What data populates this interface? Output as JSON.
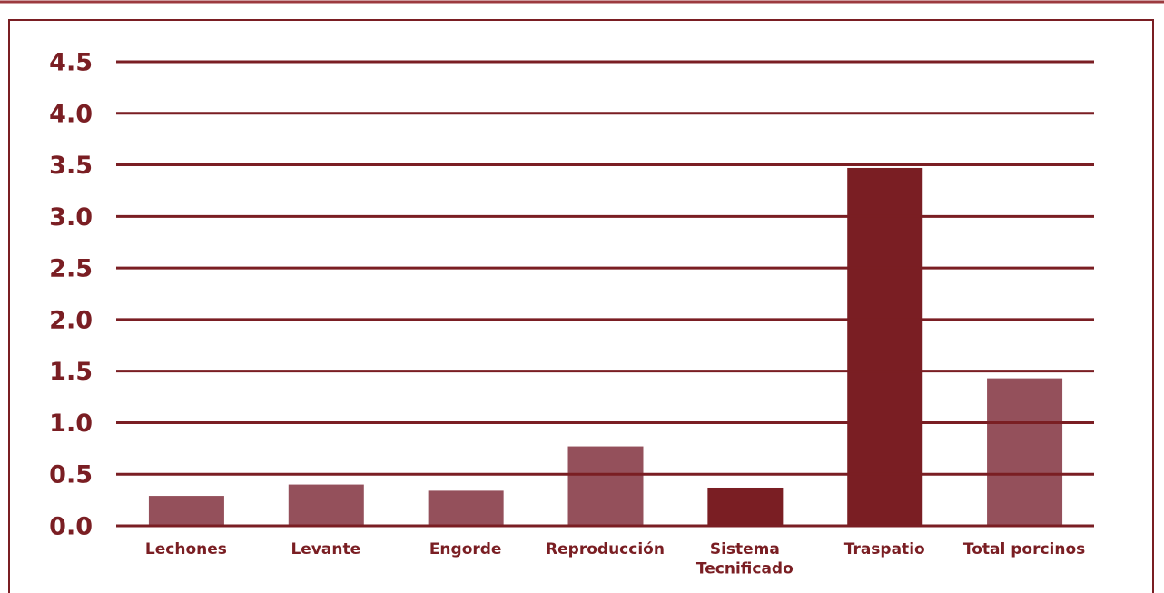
{
  "chart_data": {
    "type": "bar",
    "categories": [
      "Lechones",
      "Levante",
      "Engorde",
      "Reproducción",
      "Sistema Tecnificado",
      "Traspatio",
      "Total porcinos"
    ],
    "values": [
      0.29,
      0.4,
      0.34,
      0.77,
      0.37,
      3.47,
      1.43
    ],
    "colors": [
      "#94505b",
      "#94505b",
      "#94505b",
      "#94505b",
      "#7a1e23",
      "#7a1e23",
      "#94505b"
    ],
    "ylim": [
      0,
      4.5
    ],
    "yticks": [
      {
        "value": 0,
        "label": "0.0"
      },
      0.5,
      {
        "value": 1,
        "label": "1.0"
      },
      1.5,
      {
        "value": 2,
        "label": "2.0"
      },
      2.5,
      {
        "value": 3,
        "label": "3.0"
      },
      3.5,
      {
        "value": 4,
        "label": "4.0"
      },
      4.5
    ],
    "grid": true,
    "grid_color": "#7a1e23"
  }
}
